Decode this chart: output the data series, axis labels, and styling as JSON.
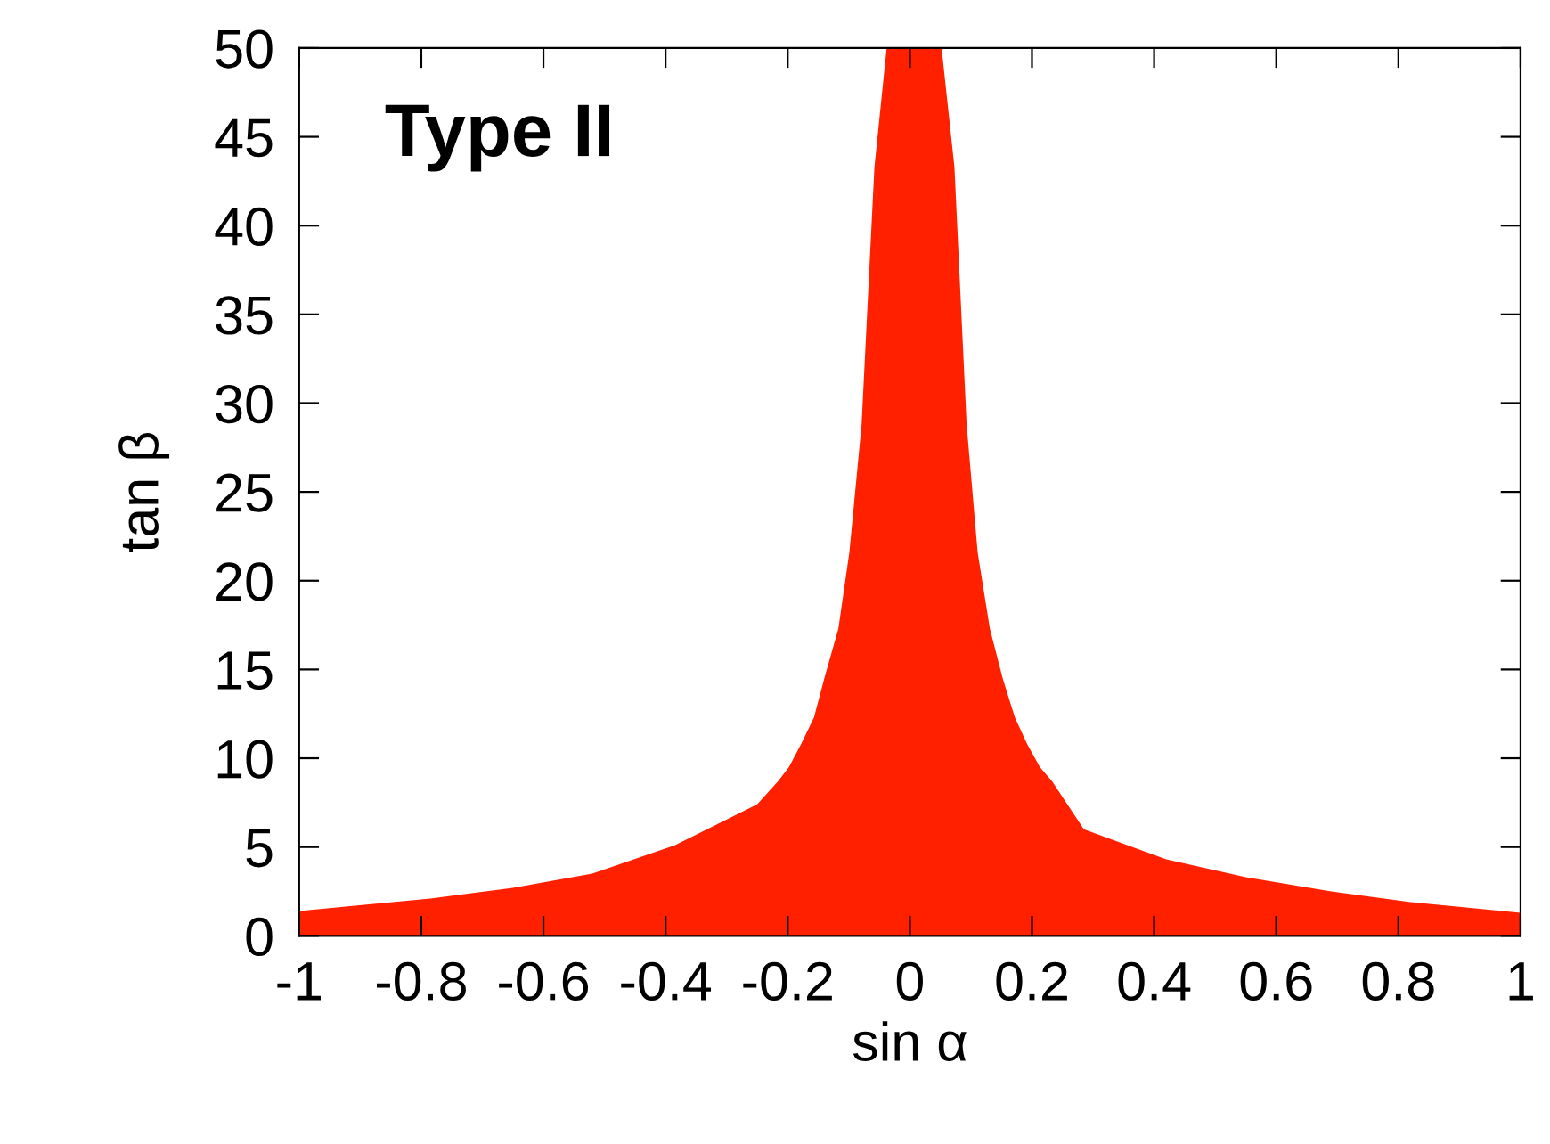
{
  "chart_data": {
    "type": "area",
    "xlabel": "sin α",
    "ylabel": "tan β",
    "annotations": [
      "Type II"
    ],
    "series": [
      {
        "color": "#ff2000",
        "x": [
          -1,
          -0.785,
          -0.65,
          -0.52,
          -0.385,
          -0.25,
          -0.216,
          -0.198,
          -0.178,
          -0.157,
          -0.14,
          -0.117,
          -0.099,
          -0.079,
          -0.058,
          -0.038,
          0.052,
          0.073,
          0.093,
          0.111,
          0.131,
          0.152,
          0.172,
          0.192,
          0.213,
          0.233,
          0.285,
          0.42,
          0.55,
          0.69,
          0.82,
          1
        ],
        "values": [
          1.4,
          2.1,
          2.7,
          3.5,
          5.1,
          7.4,
          8.7,
          9.5,
          10.8,
          12.3,
          14.5,
          17.3,
          21.6,
          28.8,
          43.3,
          50,
          50,
          43.3,
          28.8,
          21.6,
          17.3,
          14.5,
          12.3,
          10.8,
          9.5,
          8.7,
          6.0,
          4.3,
          3.3,
          2.5,
          1.9,
          1.3
        ]
      }
    ],
    "xlim": [
      -1,
      1
    ],
    "ylim": [
      0,
      50
    ],
    "xticks": [
      -1,
      -0.8,
      -0.6,
      -0.4,
      -0.2,
      0,
      0.2,
      0.4,
      0.6,
      0.8,
      1
    ],
    "yticks": [
      0,
      5,
      10,
      15,
      20,
      25,
      30,
      35,
      40,
      45,
      50
    ],
    "grid": false,
    "legend": false
  }
}
